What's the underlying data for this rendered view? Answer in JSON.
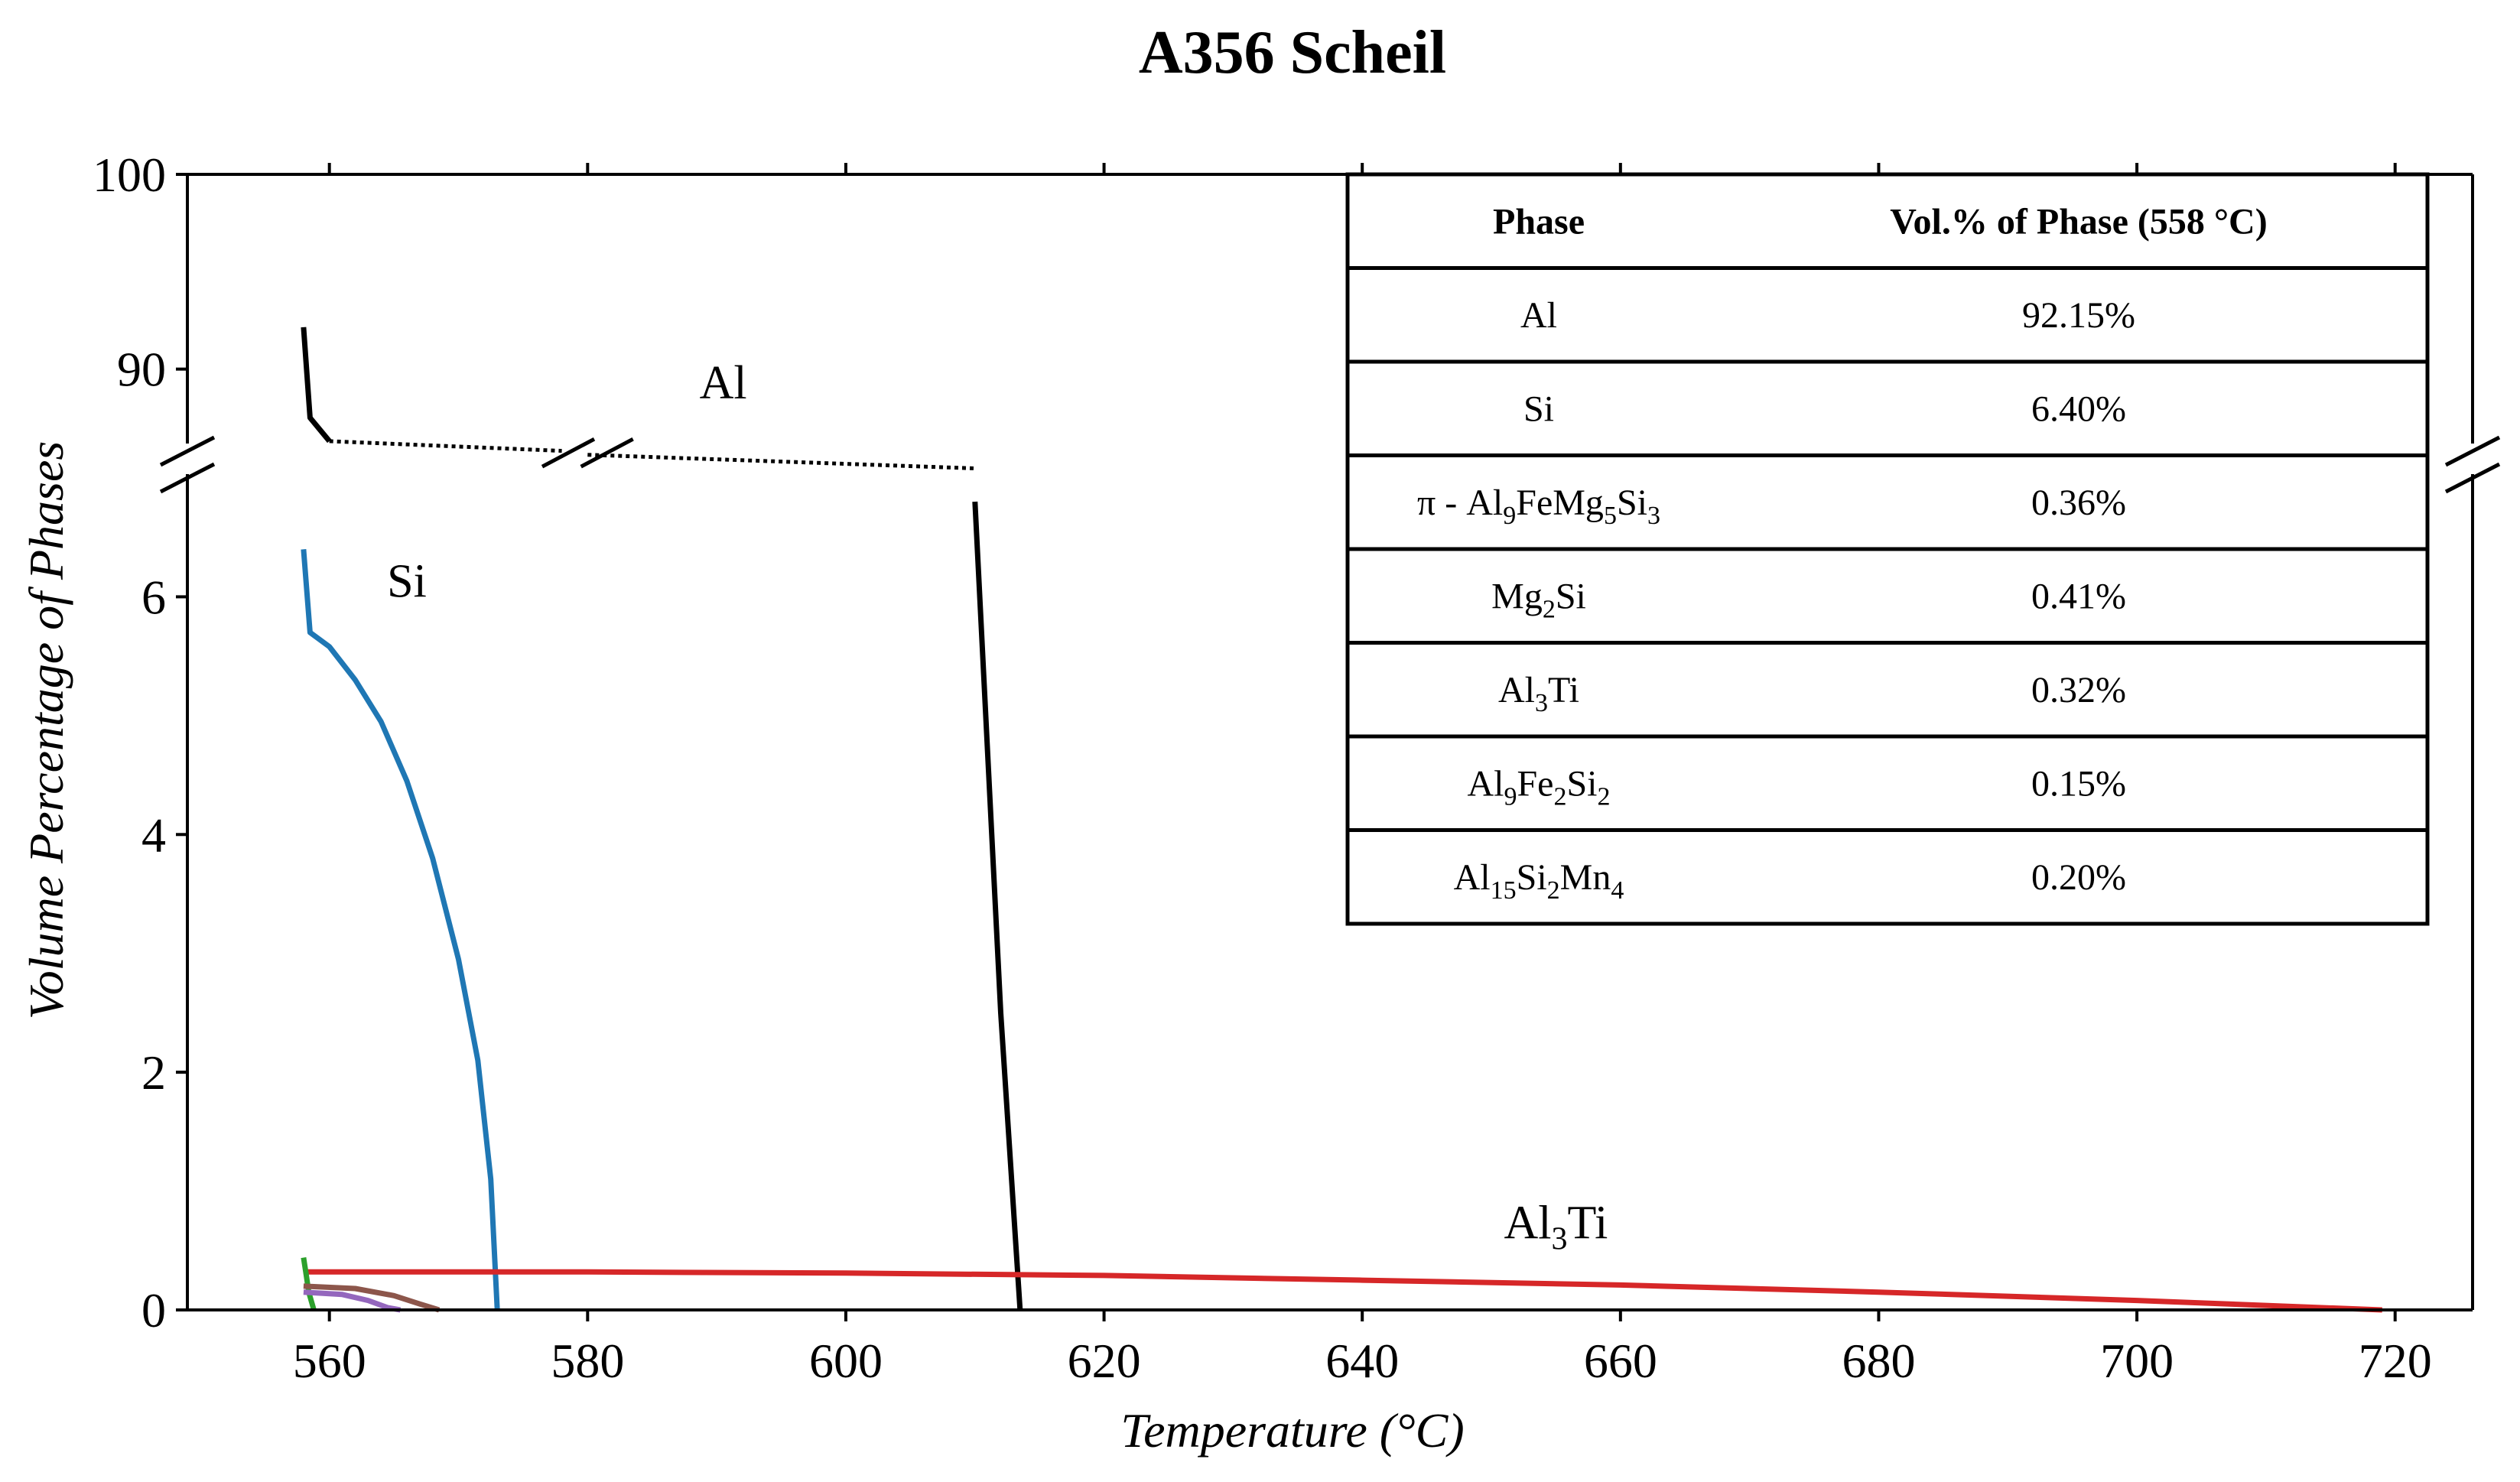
{
  "chart_data": {
    "type": "line",
    "title": "A356 Scheil",
    "xlabel": "Temperature (°C)",
    "ylabel": "Volume Percentage of Phases",
    "xlim": [
      549,
      726
    ],
    "x_ticks": [
      "560",
      "580",
      "600",
      "620",
      "640",
      "660",
      "680",
      "700",
      "720"
    ],
    "ylim_lower": [
      0,
      7.0
    ],
    "ylim_upper": [
      85,
      100
    ],
    "y_ticks_lower": [
      "0",
      "2",
      "4",
      "6"
    ],
    "y_ticks_upper": [
      "90",
      "100"
    ],
    "broken_y_axis": true,
    "grid": false,
    "series": [
      {
        "name": "Al",
        "color": "#000000",
        "segments": [
          {
            "style": "solid",
            "points": [
              [
                558,
                92.15
              ],
              [
                558.5,
                87.5
              ],
              [
                560,
                86.3
              ]
            ]
          },
          {
            "style": "dotted",
            "points": [
              [
                560,
                86.3
              ],
              [
                578,
                85.8
              ]
            ]
          },
          {
            "style": "dotted",
            "points": [
              [
                580,
                85.6
              ],
              [
                610,
                84.9
              ]
            ]
          },
          {
            "style": "solid",
            "points": [
              [
                610,
                6.8
              ],
              [
                612,
                2.5
              ],
              [
                613.5,
                0
              ]
            ]
          }
        ]
      },
      {
        "name": "Si",
        "color": "#1f77b4",
        "points": [
          [
            558,
            6.4
          ],
          [
            558.5,
            5.7
          ],
          [
            560,
            5.58
          ],
          [
            562,
            5.3
          ],
          [
            564,
            4.95
          ],
          [
            566,
            4.45
          ],
          [
            568,
            3.8
          ],
          [
            570,
            2.95
          ],
          [
            571.5,
            2.1
          ],
          [
            572.5,
            1.1
          ],
          [
            573,
            0
          ]
        ]
      },
      {
        "name": "Al3Ti",
        "color": "#d62728",
        "points": [
          [
            558,
            0.32
          ],
          [
            580,
            0.32
          ],
          [
            600,
            0.31
          ],
          [
            620,
            0.29
          ],
          [
            640,
            0.25
          ],
          [
            660,
            0.21
          ],
          [
            680,
            0.15
          ],
          [
            700,
            0.08
          ],
          [
            719,
            0
          ]
        ]
      },
      {
        "color": "#2ca02c",
        "points": [
          [
            558,
            0.44
          ],
          [
            558.2,
            0.3
          ],
          [
            558.4,
            0.15
          ],
          [
            558.8,
            0
          ]
        ]
      },
      {
        "color": "#8c564b",
        "points": [
          [
            558,
            0.2
          ],
          [
            562,
            0.18
          ],
          [
            565,
            0.12
          ],
          [
            567,
            0.05
          ],
          [
            568.5,
            0
          ]
        ]
      },
      {
        "color": "#9467bd",
        "points": [
          [
            558,
            0.15
          ],
          [
            561,
            0.13
          ],
          [
            563,
            0.08
          ],
          [
            564.5,
            0.02
          ],
          [
            565.5,
            0
          ]
        ]
      }
    ],
    "annotations": [
      {
        "text": "Al",
        "x": 590.5,
        "y": 88.5,
        "panel": "upper"
      },
      {
        "text": "Si",
        "x": 566,
        "y": 6.0,
        "panel": "lower"
      },
      {
        "text": "Al3Ti",
        "x": 655,
        "y": 0.6,
        "panel": "lower"
      }
    ],
    "table": {
      "headers": [
        "Phase",
        "Vol.% of Phase (558 °C)"
      ],
      "rows": [
        {
          "phase": [
            {
              "t": "Al"
            }
          ],
          "value": "92.15%"
        },
        {
          "phase": [
            {
              "t": "Si"
            }
          ],
          "value": "6.40%"
        },
        {
          "phase": [
            {
              "t": "π - Al"
            },
            {
              "t": "9",
              "sub": true
            },
            {
              "t": "FeMg"
            },
            {
              "t": "5",
              "sub": true
            },
            {
              "t": "Si"
            },
            {
              "t": "3",
              "sub": true
            }
          ],
          "value": "0.36%"
        },
        {
          "phase": [
            {
              "t": "Mg"
            },
            {
              "t": "2",
              "sub": true
            },
            {
              "t": "Si"
            }
          ],
          "value": "0.41%"
        },
        {
          "phase": [
            {
              "t": "Al"
            },
            {
              "t": "3",
              "sub": true
            },
            {
              "t": "Ti"
            }
          ],
          "value": "0.32%"
        },
        {
          "phase": [
            {
              "t": "Al"
            },
            {
              "t": "9",
              "sub": true
            },
            {
              "t": "Fe"
            },
            {
              "t": "2",
              "sub": true
            },
            {
              "t": "Si"
            },
            {
              "t": "2",
              "sub": true
            }
          ],
          "value": "0.15%"
        },
        {
          "phase": [
            {
              "t": "Al"
            },
            {
              "t": "15",
              "sub": true
            },
            {
              "t": "Si"
            },
            {
              "t": "2",
              "sub": true
            },
            {
              "t": "Mn"
            },
            {
              "t": "4",
              "sub": true
            }
          ],
          "value": "0.20%"
        }
      ]
    }
  }
}
